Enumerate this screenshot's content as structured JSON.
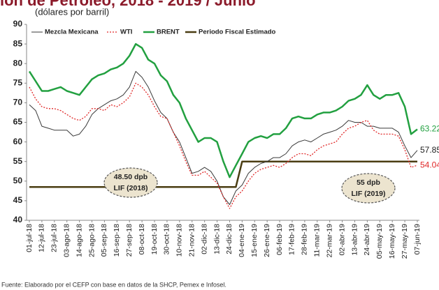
{
  "chart_data": {
    "type": "line",
    "title": "ión de Petróleo, 2018 - 2019 / Junio",
    "y_label": "(dólares por barril)",
    "source": "Fuente: Elaborado por el CEFP con base en datos de la SHCP, Pemex e Infosel.",
    "categories": [
      "01-jul-18",
      null,
      "12-jul-18",
      null,
      "23-jul-18",
      null,
      "03-ago-18",
      null,
      "14-ago-18",
      null,
      "25-ago-18",
      null,
      "05-sep-18",
      null,
      "16-sep-18",
      null,
      "27-sep-18",
      null,
      "08-oct-18",
      null,
      "19-oct-18",
      null,
      "30-oct-18",
      null,
      "10-nov-18",
      null,
      "21-nov-18",
      null,
      "02-dic-18",
      null,
      "13-dic-18",
      null,
      "24-dic-18",
      null,
      "04-ene-19",
      null,
      "15-ene-19",
      null,
      "26-ene-19",
      null,
      "06-feb-19",
      null,
      "17-feb-19",
      null,
      "28-feb-19",
      null,
      "11-mar-19",
      null,
      "22-mar-19",
      null,
      "02-abr-19",
      null,
      "13-abr-19",
      null,
      "24-abr-19",
      null,
      "05-may-19",
      null,
      "16-may-19",
      null,
      "27-may-19",
      null,
      "07-jun-19"
    ],
    "series": [
      {
        "name": "Mezcla Mexicana",
        "color": "#3a3a3a",
        "width": 1,
        "dash": "none",
        "values": [
          69.5,
          68,
          64,
          63.5,
          63,
          63,
          63,
          61.5,
          62,
          64,
          67,
          68.5,
          69.5,
          70.5,
          71,
          72,
          74,
          78,
          76.5,
          74,
          70.5,
          67.5,
          66,
          62.5,
          60,
          56,
          52,
          52.5,
          53.5,
          52.5,
          50,
          46,
          44,
          47.5,
          49,
          52,
          53.5,
          54.5,
          55,
          56,
          56,
          57,
          59,
          60,
          60.5,
          60,
          61,
          62,
          62.5,
          63,
          64,
          65.5,
          65,
          65,
          64,
          64,
          63.5,
          63.5,
          63.5,
          62.5,
          59,
          56,
          57.85
        ]
      },
      {
        "name": "WTI",
        "color": "#e02828",
        "width": 1.3,
        "dash": "2 2",
        "values": [
          74,
          71,
          69,
          68.5,
          68.5,
          68,
          67,
          66,
          65.5,
          66.5,
          68.5,
          68.5,
          68,
          69.5,
          69,
          70,
          71.5,
          75,
          74,
          72,
          69,
          66.5,
          66,
          62.5,
          59,
          55,
          51.5,
          51.5,
          52.5,
          51,
          49.5,
          46,
          43,
          46,
          47.5,
          50,
          52,
          53,
          53.5,
          54,
          53.5,
          54.5,
          56,
          57,
          57,
          56.5,
          58,
          59,
          59.5,
          60,
          62,
          63.5,
          64,
          65,
          65.5,
          63,
          62,
          62,
          62,
          61.5,
          58,
          53.5,
          54.04
        ]
      },
      {
        "name": "BRENT",
        "color": "#22a040",
        "width": 2.5,
        "dash": "none",
        "values": [
          78,
          75.5,
          73,
          73,
          73.5,
          74,
          73,
          72.5,
          72,
          74,
          76,
          77,
          77.5,
          78.5,
          79,
          80,
          82,
          85,
          84,
          81,
          80,
          77,
          75.5,
          72,
          70,
          66,
          63,
          60,
          61,
          61,
          60,
          55,
          51,
          54,
          57,
          60,
          61,
          61.5,
          61,
          62,
          62,
          63.5,
          66,
          66.5,
          66,
          66,
          67,
          67.5,
          67.5,
          68,
          69,
          70.5,
          71,
          72,
          74.5,
          72,
          71,
          72,
          72,
          72.5,
          69,
          62,
          63.22
        ]
      },
      {
        "name": "Periodo Fiscal Estimado",
        "color": "#4a3d12",
        "width": 2.5,
        "dash": "none",
        "values": [
          48.5,
          48.5,
          48.5,
          48.5,
          48.5,
          48.5,
          48.5,
          48.5,
          48.5,
          48.5,
          48.5,
          48.5,
          48.5,
          48.5,
          48.5,
          48.5,
          48.5,
          48.5,
          48.5,
          48.5,
          48.5,
          48.5,
          48.5,
          48.5,
          48.5,
          48.5,
          48.5,
          48.5,
          48.5,
          48.5,
          48.5,
          48.5,
          48.5,
          48.5,
          55,
          55,
          55,
          55,
          55,
          55,
          55,
          55,
          55,
          55,
          55,
          55,
          55,
          55,
          55,
          55,
          55,
          55,
          55,
          55,
          55,
          55,
          55,
          55,
          55,
          55,
          55,
          55,
          55
        ]
      }
    ],
    "end_labels": [
      0,
      1,
      2
    ],
    "annotations": [
      {
        "lines": [
          "48.50 dpb",
          "LIF (2018)"
        ]
      },
      {
        "lines": [
          "55 dpb",
          "LIF (2019)"
        ]
      }
    ],
    "ylim": [
      40,
      90
    ],
    "yticks": [
      40,
      45,
      50,
      55,
      60,
      65,
      70,
      75,
      80,
      85,
      90
    ],
    "grid": false
  }
}
